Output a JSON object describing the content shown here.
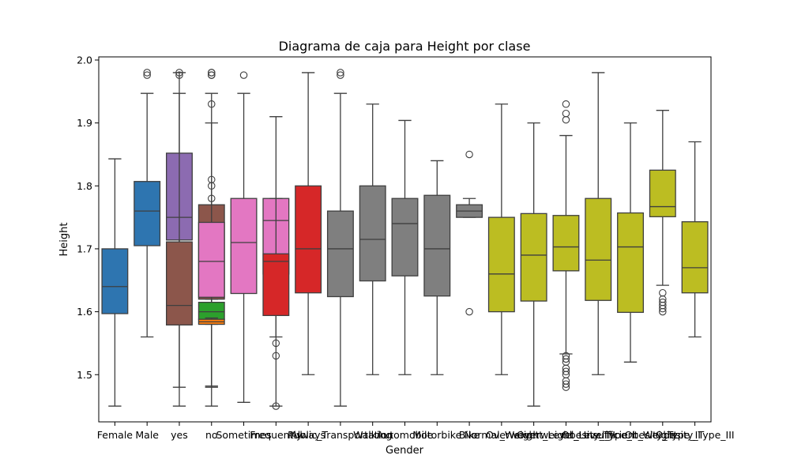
{
  "chart_data": {
    "type": "box",
    "title": "Diagrama de caja para Height por clase",
    "xlabel": "Gender",
    "ylabel": "Height",
    "ylim": [
      1.425,
      2.005
    ],
    "yticks": [
      1.5,
      1.6,
      1.7,
      1.8,
      1.9,
      2.0
    ],
    "ytick_labels": [
      "1.5",
      "1.6",
      "1.7",
      "1.8",
      "1.9",
      "2.0"
    ],
    "grid": false,
    "legend": "none",
    "categories": [
      "Female",
      "Male",
      "yes",
      "no",
      "Sometimes",
      "Frequently",
      "Always",
      "Public_Transportation",
      "Walking",
      "Automobile",
      "Motorbike",
      "Bike",
      "Normal_Weight",
      "Overweight_Level_I",
      "Overweight_Level_II",
      "Obesity_Type_I",
      "Insufficient_Weight",
      "Obesity_Type_II",
      "Obesity_Type_III"
    ],
    "boxes": [
      {
        "pos": 0,
        "color": "#2e75b0",
        "q1": 1.597,
        "median": 1.64,
        "q3": 1.7,
        "whislo": 1.45,
        "whishi": 1.843,
        "fliers": []
      },
      {
        "pos": 1,
        "color": "#2e75b0",
        "q1": 1.705,
        "median": 1.76,
        "q3": 1.807,
        "whislo": 1.56,
        "whishi": 1.947,
        "fliers": [
          1.976,
          1.98
        ]
      },
      {
        "pos": 2,
        "color": "#8c6bb1",
        "q1": 1.714,
        "median": 1.75,
        "q3": 1.852,
        "whislo": 1.48,
        "whishi": 1.98,
        "fliers": []
      },
      {
        "pos": 2,
        "color": "#8c564b",
        "q1": 1.579,
        "median": 1.61,
        "q3": 1.711,
        "whislo": 1.45,
        "whishi": 1.947,
        "fliers": [
          1.976,
          1.98
        ]
      },
      {
        "pos": 3,
        "color": "#8c564b",
        "q1": 1.62,
        "median": 1.7,
        "q3": 1.77,
        "whislo": 1.45,
        "whishi": 1.947,
        "fliers": [
          1.93,
          1.976,
          1.98
        ]
      },
      {
        "pos": 3,
        "color": "#e377c2",
        "q1": 1.623,
        "median": 1.68,
        "q3": 1.742,
        "whislo": 1.482,
        "whishi": 1.9,
        "fliers": [
          1.78,
          1.8,
          1.81,
          1.976,
          1.98
        ]
      },
      {
        "pos": 3,
        "color": "#2ca02c",
        "q1": 1.588,
        "median": 1.6,
        "q3": 1.615,
        "whislo": 1.48,
        "whishi": 1.62,
        "fliers": []
      },
      {
        "pos": 3,
        "color": "#ff7f0e",
        "q1": 1.58,
        "median": 1.584,
        "q3": 1.588,
        "whislo": 1.58,
        "whishi": 1.59,
        "fliers": []
      },
      {
        "pos": 4,
        "color": "#e377c2",
        "q1": 1.629,
        "median": 1.71,
        "q3": 1.78,
        "whislo": 1.456,
        "whishi": 1.947,
        "fliers": [
          1.976
        ]
      },
      {
        "pos": 5,
        "color": "#e377c2",
        "q1": 1.66,
        "median": 1.745,
        "q3": 1.78,
        "whislo": 1.45,
        "whishi": 1.91,
        "fliers": []
      },
      {
        "pos": 5,
        "color": "#d62728",
        "q1": 1.594,
        "median": 1.68,
        "q3": 1.692,
        "whislo": 1.56,
        "whishi": 1.78,
        "fliers": [
          1.45,
          1.53,
          1.55
        ]
      },
      {
        "pos": 6,
        "color": "#d62728",
        "q1": 1.63,
        "median": 1.7,
        "q3": 1.8,
        "whislo": 1.5,
        "whishi": 1.98,
        "fliers": []
      },
      {
        "pos": 7,
        "color": "#7f7f7f",
        "q1": 1.624,
        "median": 1.7,
        "q3": 1.76,
        "whislo": 1.45,
        "whishi": 1.947,
        "fliers": [
          1.976,
          1.98
        ]
      },
      {
        "pos": 8,
        "color": "#7f7f7f",
        "q1": 1.649,
        "median": 1.715,
        "q3": 1.8,
        "whislo": 1.5,
        "whishi": 1.93,
        "fliers": []
      },
      {
        "pos": 9,
        "color": "#7f7f7f",
        "q1": 1.657,
        "median": 1.74,
        "q3": 1.78,
        "whislo": 1.5,
        "whishi": 1.904,
        "fliers": []
      },
      {
        "pos": 10,
        "color": "#7f7f7f",
        "q1": 1.625,
        "median": 1.7,
        "q3": 1.785,
        "whislo": 1.5,
        "whishi": 1.84,
        "fliers": []
      },
      {
        "pos": 11,
        "color": "#7f7f7f",
        "q1": 1.75,
        "median": 1.76,
        "q3": 1.77,
        "whislo": 1.75,
        "whishi": 1.78,
        "fliers": [
          1.6,
          1.85
        ]
      },
      {
        "pos": 12,
        "color": "#bcbd22",
        "q1": 1.6,
        "median": 1.66,
        "q3": 1.75,
        "whislo": 1.5,
        "whishi": 1.93,
        "fliers": []
      },
      {
        "pos": 13,
        "color": "#bcbd22",
        "q1": 1.617,
        "median": 1.69,
        "q3": 1.756,
        "whislo": 1.45,
        "whishi": 1.9,
        "fliers": []
      },
      {
        "pos": 14,
        "color": "#bcbd22",
        "q1": 1.665,
        "median": 1.703,
        "q3": 1.753,
        "whislo": 1.533,
        "whishi": 1.88,
        "fliers": [
          1.48,
          1.485,
          1.49,
          1.5,
          1.505,
          1.51,
          1.52,
          1.525,
          1.53,
          1.905,
          1.915,
          1.93
        ]
      },
      {
        "pos": 15,
        "color": "#bcbd22",
        "q1": 1.618,
        "median": 1.682,
        "q3": 1.78,
        "whislo": 1.5,
        "whishi": 1.98,
        "fliers": []
      },
      {
        "pos": 16,
        "color": "#bcbd22",
        "q1": 1.599,
        "median": 1.703,
        "q3": 1.757,
        "whislo": 1.52,
        "whishi": 1.9,
        "fliers": []
      },
      {
        "pos": 17,
        "color": "#bcbd22",
        "q1": 1.751,
        "median": 1.767,
        "q3": 1.825,
        "whislo": 1.642,
        "whishi": 1.92,
        "fliers": [
          1.6,
          1.605,
          1.61,
          1.615,
          1.62,
          1.63
        ]
      },
      {
        "pos": 18,
        "color": "#bcbd22",
        "q1": 1.63,
        "median": 1.67,
        "q3": 1.743,
        "whislo": 1.56,
        "whishi": 1.87,
        "fliers": []
      }
    ]
  }
}
